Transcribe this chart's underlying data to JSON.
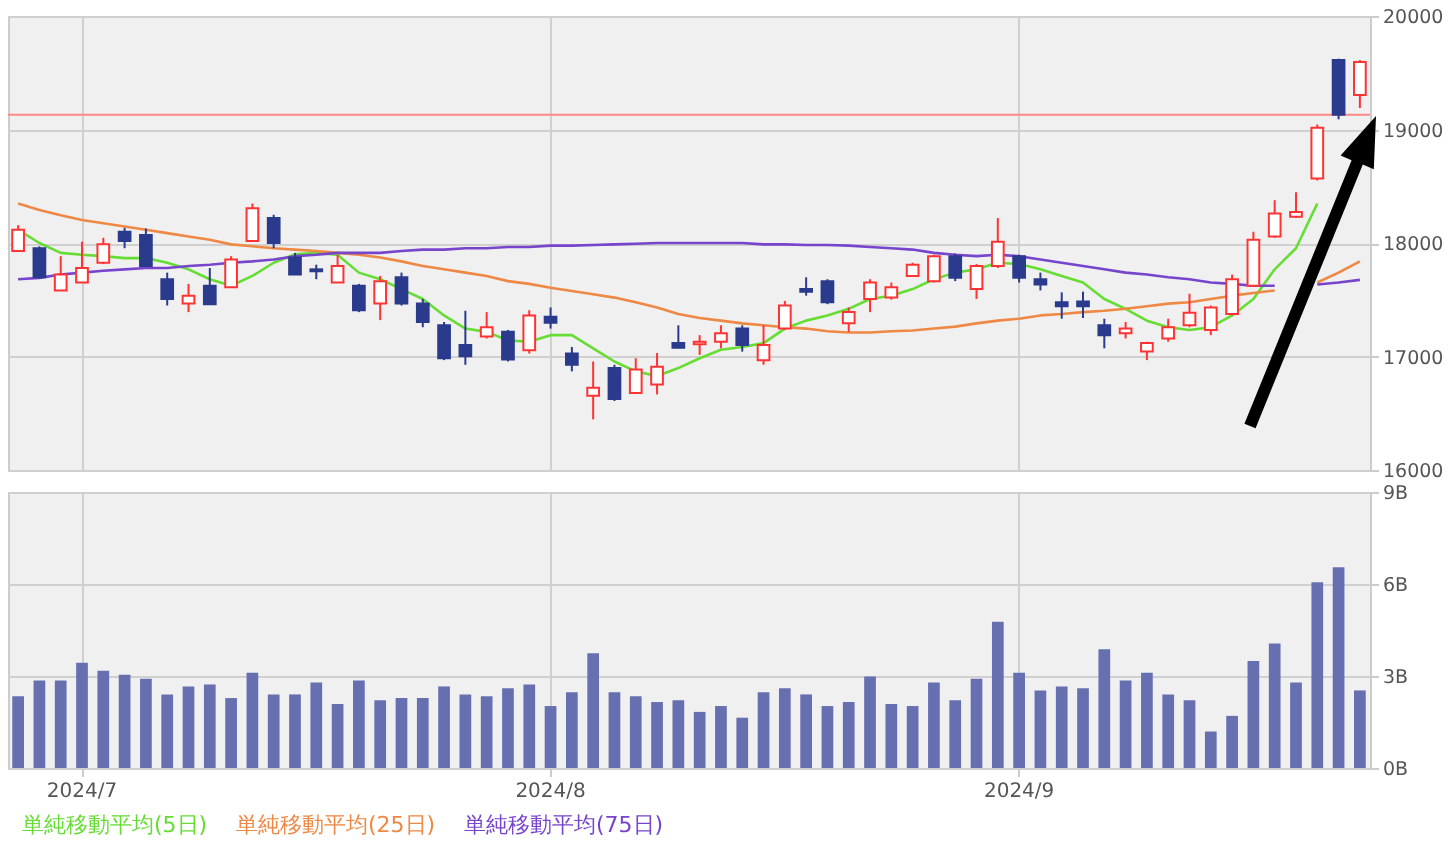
{
  "chart_data": [
    {
      "type": "candlestick",
      "categories": [
        null,
        null,
        null,
        "2024/7",
        null,
        null,
        null,
        null,
        null,
        null,
        null,
        null,
        null,
        null,
        null,
        null,
        null,
        null,
        null,
        null,
        null,
        null,
        null,
        null,
        null,
        "2024/8",
        null,
        null,
        null,
        null,
        null,
        null,
        null,
        null,
        null,
        null,
        null,
        null,
        null,
        null,
        null,
        null,
        null,
        null,
        null,
        null,
        null,
        "2024/9",
        null,
        null,
        null,
        null,
        null,
        null,
        null,
        null,
        null,
        null,
        null,
        null,
        null,
        null,
        null,
        null
      ],
      "ohlc": [
        [
          17930,
          18157,
          17930,
          18116
        ],
        [
          17954,
          17971,
          17687,
          17698
        ],
        [
          17582,
          17884,
          17582,
          17722
        ],
        [
          17652,
          18012,
          17652,
          17780
        ],
        [
          17826,
          18046,
          17814,
          17988
        ],
        [
          18099,
          18133,
          17954,
          18017
        ],
        [
          18070,
          18128,
          17797,
          17797
        ],
        [
          17681,
          17739,
          17449,
          17507
        ],
        [
          17466,
          17640,
          17391,
          17536
        ],
        [
          17623,
          17780,
          17461,
          17461
        ],
        [
          17611,
          17884,
          17611,
          17855
        ],
        [
          18017,
          18348,
          18017,
          18307
        ],
        [
          18220,
          18249,
          17954,
          18000
        ],
        [
          17872,
          17913,
          17722,
          17722
        ],
        [
          17768,
          17809,
          17681,
          17751
        ],
        [
          17652,
          17896,
          17652,
          17797
        ],
        [
          17623,
          17640,
          17391,
          17408
        ],
        [
          17466,
          17710,
          17321,
          17664
        ],
        [
          17698,
          17739,
          17449,
          17466
        ],
        [
          17466,
          17507,
          17258,
          17304
        ],
        [
          17275,
          17304,
          16968,
          16985
        ],
        [
          17101,
          17403,
          16927,
          17002
        ],
        [
          17176,
          17391,
          17159,
          17258
        ],
        [
          17217,
          17234,
          16956,
          16973
        ],
        [
          17055,
          17408,
          17026,
          17362
        ],
        [
          17350,
          17432,
          17246,
          17298
        ],
        [
          17026,
          17084,
          16869,
          16927
        ],
        [
          16654,
          16956,
          16446,
          16724
        ],
        [
          16898,
          16927,
          16608,
          16625
        ],
        [
          16678,
          16985,
          16678,
          16886
        ],
        [
          16753,
          17031,
          16666,
          16910
        ],
        [
          17118,
          17275,
          17072,
          17078
        ],
        [
          17107,
          17188,
          17014,
          17130
        ],
        [
          17130,
          17275,
          17072,
          17205
        ],
        [
          17246,
          17275,
          17043,
          17101
        ],
        [
          16968,
          17275,
          16927,
          17101
        ],
        [
          17246,
          17490,
          17234,
          17449
        ],
        [
          17594,
          17698,
          17536,
          17571
        ],
        [
          17664,
          17681,
          17461,
          17478
        ],
        [
          17292,
          17432,
          17217,
          17391
        ],
        [
          17507,
          17681,
          17391,
          17652
        ],
        [
          17519,
          17652,
          17501,
          17611
        ],
        [
          17710,
          17826,
          17710,
          17809
        ],
        [
          17664,
          17896,
          17652,
          17884
        ],
        [
          17884,
          17907,
          17664,
          17693
        ],
        [
          17594,
          17814,
          17507,
          17797
        ],
        [
          17797,
          18220,
          17780,
          18012
        ],
        [
          17884,
          17896,
          17652,
          17693
        ],
        [
          17681,
          17739,
          17582,
          17635
        ],
        [
          17478,
          17565,
          17333,
          17443
        ],
        [
          17484,
          17571,
          17339,
          17443
        ],
        [
          17275,
          17333,
          17072,
          17188
        ],
        [
          17205,
          17304,
          17159,
          17246
        ],
        [
          17043,
          17130,
          16968,
          17118
        ],
        [
          17159,
          17333,
          17130,
          17258
        ],
        [
          17275,
          17553,
          17258,
          17385
        ],
        [
          17234,
          17449,
          17188,
          17432
        ],
        [
          17374,
          17722,
          17362,
          17681
        ],
        [
          17623,
          18099,
          17623,
          18029
        ],
        [
          18058,
          18377,
          18046,
          18261
        ],
        [
          18232,
          18447,
          18220,
          18273
        ],
        [
          18568,
          19044,
          18551,
          19015
        ],
        [
          19612,
          19624,
          19090,
          19131
        ],
        [
          19305,
          19612,
          19189,
          19595
        ]
      ],
      "series": [
        {
          "name": "単純移動平均(5日)",
          "type": "line",
          "color": "#66dd33",
          "values": [
            18116,
            18000,
            17913,
            17896,
            17884,
            17867,
            17867,
            17826,
            17768,
            17681,
            17623,
            17710,
            17826,
            17901,
            17913,
            17896,
            17739,
            17681,
            17594,
            17507,
            17362,
            17246,
            17217,
            17142,
            17130,
            17188,
            17188,
            17072,
            16956,
            16869,
            16828,
            16898,
            16985,
            17060,
            17084,
            17118,
            17246,
            17316,
            17362,
            17420,
            17507,
            17536,
            17594,
            17681,
            17739,
            17768,
            17826,
            17814,
            17768,
            17710,
            17652,
            17507,
            17420,
            17316,
            17258,
            17234,
            17258,
            17362,
            17507,
            17768,
            17954,
            18348,
            null,
            null
          ]
        },
        {
          "name": "単純移動平均(25日)",
          "type": "line",
          "color": "#ee8844",
          "values": [
            18348,
            18290,
            18244,
            18203,
            18174,
            18145,
            18116,
            18087,
            18058,
            18029,
            17988,
            17971,
            17954,
            17942,
            17930,
            17913,
            17896,
            17872,
            17838,
            17797,
            17768,
            17739,
            17710,
            17664,
            17640,
            17606,
            17577,
            17548,
            17519,
            17478,
            17432,
            17374,
            17339,
            17316,
            17292,
            17275,
            17258,
            17246,
            17223,
            17211,
            17211,
            17223,
            17229,
            17246,
            17263,
            17292,
            17316,
            17333,
            17362,
            17374,
            17391,
            17403,
            17420,
            17443,
            17466,
            17478,
            17507,
            17536,
            17559,
            17582,
            null,
            17652,
            17739,
            17838
          ]
        },
        {
          "name": "単純移動平均(75日)",
          "type": "line",
          "color": "#7744cc",
          "values": [
            17681,
            17693,
            17722,
            17739,
            17756,
            17768,
            17780,
            17780,
            17797,
            17809,
            17826,
            17838,
            17855,
            17884,
            17896,
            17913,
            17913,
            17913,
            17930,
            17942,
            17942,
            17954,
            17954,
            17965,
            17965,
            17977,
            17977,
            17983,
            17988,
            17994,
            18000,
            18000,
            18000,
            18000,
            18000,
            17988,
            17988,
            17983,
            17983,
            17977,
            17965,
            17954,
            17942,
            17913,
            17896,
            17884,
            17896,
            17884,
            17855,
            17826,
            17797,
            17768,
            17739,
            17722,
            17698,
            17681,
            17652,
            17640,
            17623,
            17623,
            null,
            17635,
            17652,
            17675
          ]
        }
      ],
      "ylim": [
        16000,
        20000
      ],
      "yticks": [
        16000,
        17000,
        18000,
        19000,
        20000
      ],
      "ref_lines": [
        {
          "axis": "y",
          "value": 19130,
          "color": "#ff8888"
        }
      ],
      "grid": true,
      "legend": "bottom left",
      "tick_labels": "y"
    },
    {
      "type": "bar",
      "categories": [
        null,
        null,
        null,
        "2024/7",
        null,
        null,
        null,
        null,
        null,
        null,
        null,
        null,
        null,
        null,
        null,
        null,
        null,
        null,
        null,
        null,
        null,
        null,
        null,
        null,
        null,
        "2024/8",
        null,
        null,
        null,
        null,
        null,
        null,
        null,
        null,
        null,
        null,
        null,
        null,
        null,
        null,
        null,
        null,
        null,
        null,
        null,
        null,
        null,
        "2024/9",
        null,
        null,
        null,
        null,
        null,
        null,
        null,
        null,
        null,
        null,
        null,
        null,
        null,
        null,
        null,
        null
      ],
      "values": [
        2.34,
        2.85,
        2.85,
        3.43,
        3.17,
        3.04,
        2.91,
        2.4,
        2.66,
        2.72,
        2.28,
        3.11,
        2.4,
        2.4,
        2.79,
        2.09,
        2.85,
        2.21,
        2.28,
        2.28,
        2.66,
        2.4,
        2.34,
        2.6,
        2.72,
        2.02,
        2.47,
        3.74,
        2.47,
        2.34,
        2.15,
        2.21,
        1.83,
        2.02,
        1.64,
        2.47,
        2.6,
        2.4,
        2.02,
        2.15,
        2.98,
        2.09,
        2.02,
        2.79,
        2.21,
        2.91,
        4.77,
        3.11,
        2.53,
        2.66,
        2.6,
        3.87,
        2.85,
        3.11,
        2.4,
        2.21,
        1.19,
        1.7,
        3.49,
        4.06,
        2.79,
        6.06,
        6.55,
        2.53
      ],
      "color": "#6670b0",
      "ylim": [
        0,
        9
      ],
      "yticks": [
        {
          "value": 0,
          "label": "0B"
        },
        {
          "value": 3,
          "label": "3B"
        },
        {
          "value": 6,
          "label": "6B"
        },
        {
          "value": 9,
          "label": "9B"
        }
      ],
      "grid": true
    }
  ]
}
